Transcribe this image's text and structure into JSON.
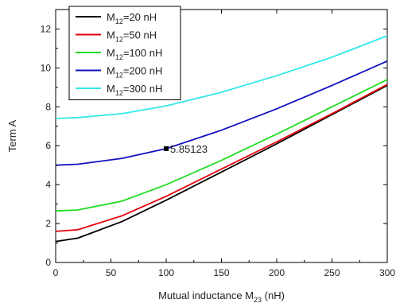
{
  "chart_data": {
    "type": "line",
    "title": "",
    "xlabel": {
      "main": "Mutual inductance M",
      "sub": "23",
      "unit": " (nH)"
    },
    "ylabel": "Term A",
    "xlim": [
      0,
      300
    ],
    "ylim": [
      0,
      13
    ],
    "xticks": [
      0,
      50,
      100,
      150,
      200,
      250,
      300
    ],
    "yticks": [
      0,
      2,
      4,
      6,
      8,
      10,
      12
    ],
    "grid": false,
    "legend_position": "top-left",
    "series": [
      {
        "name": {
          "main": "M",
          "sub": "12",
          "rest": "=20 nH"
        },
        "color": "#000000",
        "x": [
          0,
          20,
          60,
          100,
          150,
          200,
          250,
          300
        ],
        "y": [
          1.08,
          1.25,
          2.1,
          3.2,
          4.65,
          6.1,
          7.6,
          9.1
        ]
      },
      {
        "name": {
          "main": "M",
          "sub": "12",
          "rest": "=50 nH"
        },
        "color": "#e8000b",
        "x": [
          0,
          20,
          60,
          100,
          150,
          200,
          250,
          300
        ],
        "y": [
          1.6,
          1.68,
          2.4,
          3.4,
          4.8,
          6.2,
          7.65,
          9.15
        ]
      },
      {
        "name": {
          "main": "M",
          "sub": "12",
          "rest": "=100 nH"
        },
        "color": "#22dd22",
        "x": [
          0,
          20,
          60,
          100,
          150,
          200,
          250,
          300
        ],
        "y": [
          2.65,
          2.7,
          3.15,
          4.0,
          5.25,
          6.6,
          8.0,
          9.4
        ]
      },
      {
        "name": {
          "main": "M",
          "sub": "12",
          "rest": "=200 nH"
        },
        "color": "#1010c0",
        "x": [
          0,
          20,
          60,
          100,
          150,
          200,
          250,
          300
        ],
        "y": [
          5.0,
          5.05,
          5.35,
          5.85,
          6.8,
          7.9,
          9.1,
          10.35
        ]
      },
      {
        "name": {
          "main": "M",
          "sub": "12",
          "rest": "=300 nH"
        },
        "color": "#33e8e8",
        "x": [
          0,
          20,
          60,
          100,
          150,
          200,
          250,
          300
        ],
        "y": [
          7.4,
          7.45,
          7.65,
          8.05,
          8.75,
          9.6,
          10.55,
          11.65
        ]
      }
    ],
    "annotation": {
      "x": 100,
      "y": 5.85123,
      "label": "5.85123"
    }
  }
}
